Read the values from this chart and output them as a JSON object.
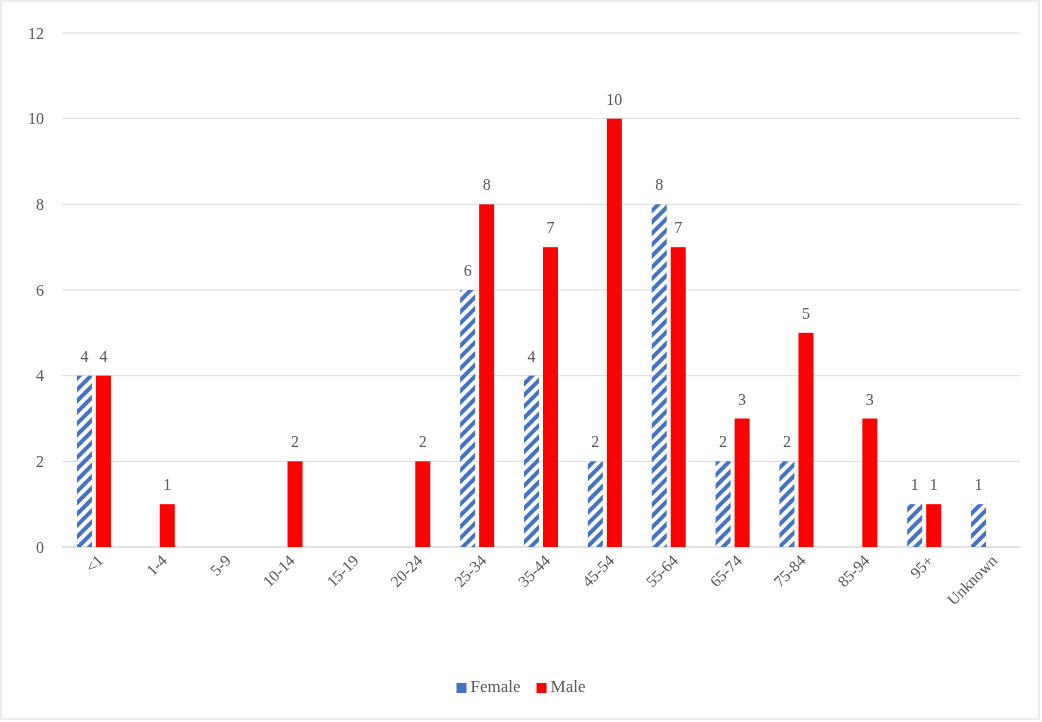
{
  "chart_data": {
    "type": "bar",
    "categories": [
      "<1",
      "1-4",
      "5-9",
      "10-14",
      "15-19",
      "20-24",
      "25-34",
      "35-44",
      "45-54",
      "55-64",
      "65-74",
      "75-84",
      "85-94",
      "95+",
      "Unknown"
    ],
    "series": [
      {
        "name": "Female",
        "color": "#4472c4",
        "values": [
          4,
          null,
          null,
          null,
          null,
          null,
          6,
          4,
          2,
          8,
          2,
          2,
          null,
          1,
          1
        ]
      },
      {
        "name": "Male",
        "color": "#ff0000",
        "values": [
          4,
          1,
          null,
          2,
          null,
          2,
          8,
          7,
          10,
          7,
          3,
          5,
          3,
          1,
          null
        ]
      }
    ],
    "ylim": [
      0,
      12
    ],
    "yticks": [
      0,
      2,
      4,
      6,
      8,
      10,
      12
    ],
    "grid": "y",
    "legend": "bottom",
    "data_labels": true
  }
}
